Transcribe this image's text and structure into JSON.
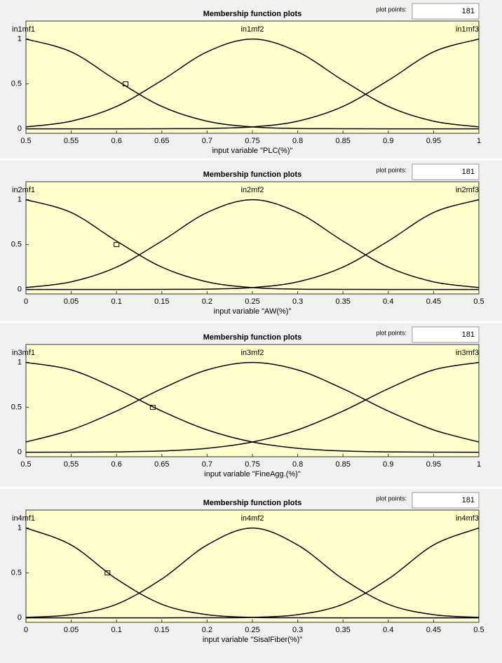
{
  "chart_data": [
    {
      "type": "line",
      "title": "Membership function plots",
      "xlabel": "input variable \"PLC(%)\"",
      "plot_points_label": "plot points:",
      "plot_points": "181",
      "x": [
        0.5,
        0.55,
        0.6,
        0.65,
        0.7,
        0.75,
        0.8,
        0.85,
        0.9,
        0.95,
        1
      ],
      "series": [
        {
          "name": "in1mf1",
          "color": "#000000",
          "values": [
            1,
            0.857,
            0.539,
            0.249,
            0.085,
            0.021,
            0.004,
            0.001,
            0,
            0,
            0
          ]
        },
        {
          "name": "in1mf2",
          "color": "#000000",
          "values": [
            0.021,
            0.085,
            0.249,
            0.539,
            0.857,
            1,
            0.857,
            0.539,
            0.249,
            0.085,
            0.021
          ]
        },
        {
          "name": "in1mf3",
          "color": "#000000",
          "values": [
            0,
            0,
            0,
            0.001,
            0.004,
            0.021,
            0.085,
            0.249,
            0.539,
            0.857,
            1
          ]
        }
      ],
      "selected_point": {
        "x": 0.61,
        "y": 0.5
      },
      "xlim": [
        0.5,
        1
      ],
      "ylim": [
        -0.05,
        1.2
      ],
      "xticks": [
        0.5,
        0.55,
        0.6,
        0.65,
        0.7,
        0.75,
        0.8,
        0.85,
        0.9,
        0.95,
        1
      ],
      "yticks": [
        0,
        0.5,
        1
      ]
    },
    {
      "type": "line",
      "title": "Membership function plots",
      "xlabel": "input variable \"AW(%)\"",
      "plot_points_label": "plot points:",
      "plot_points": "181",
      "x": [
        0,
        0.05,
        0.1,
        0.15,
        0.2,
        0.25,
        0.3,
        0.35,
        0.4,
        0.45,
        0.5
      ],
      "series": [
        {
          "name": "in2mf1",
          "color": "#000000",
          "values": [
            1,
            0.857,
            0.539,
            0.249,
            0.085,
            0.021,
            0.004,
            0.001,
            0,
            0,
            0
          ]
        },
        {
          "name": "in2mf2",
          "color": "#000000",
          "values": [
            0.021,
            0.085,
            0.249,
            0.539,
            0.857,
            1,
            0.857,
            0.539,
            0.249,
            0.085,
            0.021
          ]
        },
        {
          "name": "in2mf3",
          "color": "#000000",
          "values": [
            0,
            0,
            0,
            0.001,
            0.004,
            0.021,
            0.085,
            0.249,
            0.539,
            0.857,
            1
          ]
        }
      ],
      "selected_point": {
        "x": 0.1,
        "y": 0.5
      },
      "xlim": [
        0,
        0.5
      ],
      "ylim": [
        -0.05,
        1.2
      ],
      "xticks": [
        0,
        0.05,
        0.1,
        0.15,
        0.2,
        0.25,
        0.3,
        0.35,
        0.4,
        0.45,
        0.5
      ],
      "yticks": [
        0,
        0.5,
        1
      ]
    },
    {
      "type": "line",
      "title": "Membership function plots",
      "xlabel": "input variable \"FineAgg.(%)\"",
      "plot_points_label": "plot points:",
      "plot_points": "181",
      "x": [
        0.5,
        0.55,
        0.6,
        0.65,
        0.7,
        0.75,
        0.8,
        0.85,
        0.9,
        0.95,
        1
      ],
      "series": [
        {
          "name": "in3mf1",
          "color": "#000000",
          "values": [
            1,
            0.917,
            0.707,
            0.458,
            0.249,
            0.114,
            0.044,
            0.014,
            0.004,
            0.001,
            0
          ]
        },
        {
          "name": "in3mf2",
          "color": "#000000",
          "values": [
            0.114,
            0.249,
            0.458,
            0.707,
            0.917,
            1,
            0.917,
            0.707,
            0.458,
            0.249,
            0.114
          ]
        },
        {
          "name": "in3mf3",
          "color": "#000000",
          "values": [
            0,
            0.001,
            0.004,
            0.014,
            0.044,
            0.114,
            0.249,
            0.458,
            0.707,
            0.917,
            1
          ]
        }
      ],
      "selected_point": {
        "x": 0.64,
        "y": 0.5
      },
      "xlim": [
        0.5,
        1
      ],
      "ylim": [
        -0.05,
        1.2
      ],
      "xticks": [
        0.5,
        0.55,
        0.6,
        0.65,
        0.7,
        0.75,
        0.8,
        0.85,
        0.9,
        0.95,
        1
      ],
      "yticks": [
        0,
        0.5,
        1
      ]
    },
    {
      "type": "line",
      "title": "Membership function plots",
      "xlabel": "input variable \"SisalFiber(%)\"",
      "plot_points_label": "plot points:",
      "plot_points": "181",
      "x": [
        0,
        0.05,
        0.1,
        0.15,
        0.2,
        0.25,
        0.3,
        0.35,
        0.4,
        0.45,
        0.5
      ],
      "series": [
        {
          "name": "in4mf1",
          "color": "#000000",
          "values": [
            1,
            0.811,
            0.432,
            0.151,
            0.035,
            0.005,
            0.001,
            0,
            0,
            0,
            0
          ]
        },
        {
          "name": "in4mf2",
          "color": "#000000",
          "values": [
            0.005,
            0.035,
            0.151,
            0.432,
            0.811,
            1,
            0.811,
            0.432,
            0.151,
            0.035,
            0.005
          ]
        },
        {
          "name": "in4mf3",
          "color": "#000000",
          "values": [
            0,
            0,
            0,
            0,
            0.001,
            0.005,
            0.035,
            0.151,
            0.432,
            0.811,
            1
          ]
        }
      ],
      "selected_point": {
        "x": 0.09,
        "y": 0.5
      },
      "xlim": [
        0,
        0.5
      ],
      "ylim": [
        -0.05,
        1.2
      ],
      "xticks": [
        0,
        0.05,
        0.1,
        0.15,
        0.2,
        0.25,
        0.3,
        0.35,
        0.4,
        0.45,
        0.5
      ],
      "yticks": [
        0,
        0.5,
        1
      ]
    }
  ]
}
